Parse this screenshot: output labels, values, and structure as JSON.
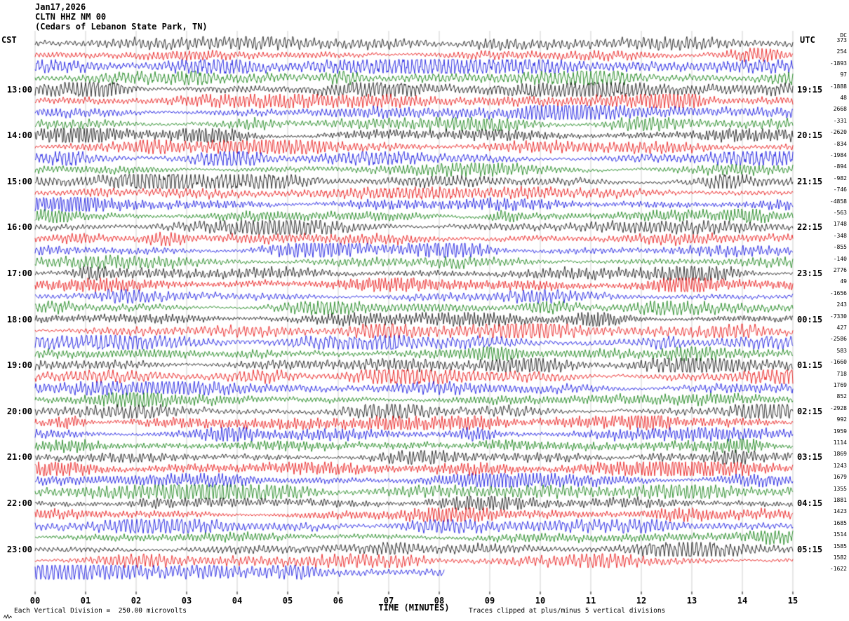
{
  "header": {
    "date_line": "Jan17,2026",
    "station_line": "CLTN HHZ NM 00",
    "location_line": "(Cedars of Lebanon State Park, TN)",
    "left_timezone": "CST",
    "right_timezone": "UTC",
    "dc_column_label": "DC"
  },
  "x_axis": {
    "label": "TIME (MINUTES)",
    "tick_labels": [
      "00",
      "01",
      "02",
      "03",
      "04",
      "05",
      "06",
      "07",
      "08",
      "09",
      "10",
      "11",
      "12",
      "13",
      "14",
      "15"
    ]
  },
  "footer": {
    "scale_note": "Each Vertical Division =  250.00 microvolts",
    "clip_note": "Traces clipped at plus/minus 5 vertical divisions"
  },
  "chart_data": {
    "type": "line",
    "variant": "helicorder_seismogram",
    "title": "CLTN HHZ NM 00 (Cedars of Lebanon State Park, TN) Jan17,2026",
    "xlabel": "TIME (MINUTES)",
    "x_range_minutes": [
      0,
      15
    ],
    "minutes_per_row": 15,
    "rows_per_hour": 4,
    "row_count": 47,
    "first_row_start_cst": "12:00",
    "last_row_fraction_drawn": 0.54,
    "trace_color_cycle": [
      "#000000",
      "#e60000",
      "#0000dd",
      "#007700"
    ],
    "grid_color": "#9a9a9a",
    "left_hour_labels": [
      {
        "row": 4,
        "label": "13:00"
      },
      {
        "row": 8,
        "label": "14:00"
      },
      {
        "row": 12,
        "label": "15:00"
      },
      {
        "row": 16,
        "label": "16:00"
      },
      {
        "row": 20,
        "label": "17:00"
      },
      {
        "row": 24,
        "label": "18:00"
      },
      {
        "row": 28,
        "label": "19:00"
      },
      {
        "row": 32,
        "label": "20:00"
      },
      {
        "row": 36,
        "label": "21:00"
      },
      {
        "row": 40,
        "label": "22:00"
      },
      {
        "row": 44,
        "label": "23:00"
      }
    ],
    "right_hour_labels": [
      {
        "row": 4,
        "label": "19:15"
      },
      {
        "row": 8,
        "label": "20:15"
      },
      {
        "row": 12,
        "label": "21:15"
      },
      {
        "row": 16,
        "label": "22:15"
      },
      {
        "row": 20,
        "label": "23:15"
      },
      {
        "row": 24,
        "label": "00:15"
      },
      {
        "row": 28,
        "label": "01:15"
      },
      {
        "row": 32,
        "label": "02:15"
      },
      {
        "row": 36,
        "label": "03:15"
      },
      {
        "row": 40,
        "label": "04:15"
      },
      {
        "row": 44,
        "label": "05:15"
      }
    ],
    "dc_offsets": [
      373,
      254,
      -1893,
      97,
      -1888,
      48,
      2668,
      -331,
      -2620,
      -834,
      -1984,
      -894,
      -982,
      -746,
      -4858,
      -563,
      1748,
      -348,
      -855,
      -140,
      2776,
      49,
      -1656,
      243,
      -7330,
      427,
      -2586,
      583,
      -1660,
      718,
      1769,
      852,
      -2928,
      992,
      1959,
      1114,
      1869,
      1243,
      1679,
      1355,
      1881,
      1423,
      1685,
      1514,
      1585,
      1582,
      -1622
    ],
    "clip_divisions": 5,
    "microvolts_per_division": 250.0,
    "noise_seed": 20260117
  }
}
